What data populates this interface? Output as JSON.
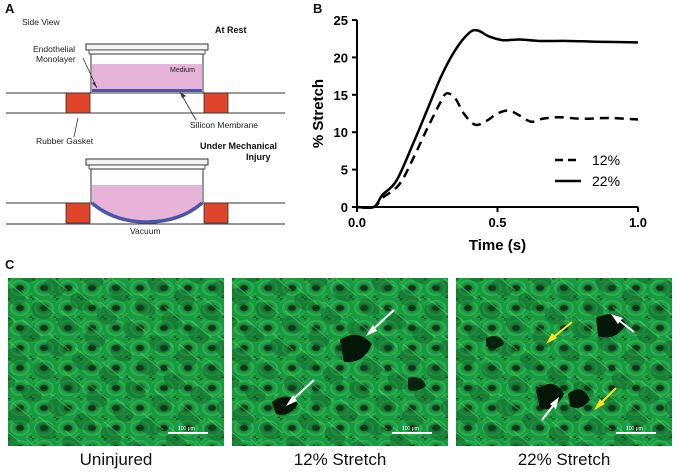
{
  "figure": {
    "panels": {
      "a": {
        "letter": "A",
        "side_view": "Side View",
        "at_rest": "At Rest",
        "under_mech_1": "Under Mechanical",
        "under_mech_2": "Injury",
        "endothelial_1": "Endothelial",
        "endothelial_2": "Monolayer",
        "medium": "Medium",
        "rubber_gasket": "Rubber Gasket",
        "silicon_membrane": "Silicon Membrane",
        "vacuum": "Vacuum"
      },
      "b": {
        "letter": "B"
      },
      "c": {
        "letter": "C",
        "images": [
          {
            "caption": "Uninjured",
            "scale": "100 μm"
          },
          {
            "caption": "12% Stretch",
            "scale": "100 μm"
          },
          {
            "caption": "22% Stretch",
            "scale": "100 μm"
          }
        ]
      }
    },
    "colors": {
      "medium": "#e7b3d8",
      "gasket": "#e0442a",
      "cells": "#4a55a8",
      "fluor": "#22b04a"
    }
  },
  "chart_data": {
    "type": "line",
    "title": "",
    "xlabel": "Time (s)",
    "ylabel": "% Stretch",
    "xlim": [
      0,
      1.0
    ],
    "ylim": [
      0,
      25
    ],
    "xticks": [
      "0.0",
      "0.5",
      "1.0"
    ],
    "yticks": [
      "0",
      "5",
      "10",
      "15",
      "20",
      "25"
    ],
    "legend_position": "bottom-right",
    "grid": false,
    "series": [
      {
        "name": "12%",
        "style": "dashed",
        "x": [
          0,
          0.06,
          0.09,
          0.15,
          0.2,
          0.25,
          0.3,
          0.32,
          0.35,
          0.38,
          0.42,
          0.46,
          0.5,
          0.54,
          0.58,
          0.62,
          0.66,
          0.72,
          0.8,
          0.9,
          1.0
        ],
        "y": [
          0,
          0,
          1.2,
          3.0,
          6.5,
          10.5,
          14.2,
          15.2,
          14.5,
          12.5,
          11.0,
          11.5,
          12.5,
          12.9,
          12.2,
          11.4,
          11.8,
          12.0,
          11.8,
          11.9,
          11.7
        ]
      },
      {
        "name": "22%",
        "style": "solid",
        "x": [
          0,
          0.06,
          0.09,
          0.14,
          0.2,
          0.25,
          0.3,
          0.35,
          0.4,
          0.43,
          0.47,
          0.52,
          0.58,
          0.65,
          0.75,
          0.85,
          1.0
        ],
        "y": [
          0,
          0,
          1.6,
          3.5,
          8.5,
          13.0,
          17.5,
          21.0,
          23.3,
          23.6,
          22.8,
          22.3,
          22.4,
          22.2,
          22.2,
          22.1,
          22.0
        ]
      }
    ]
  }
}
